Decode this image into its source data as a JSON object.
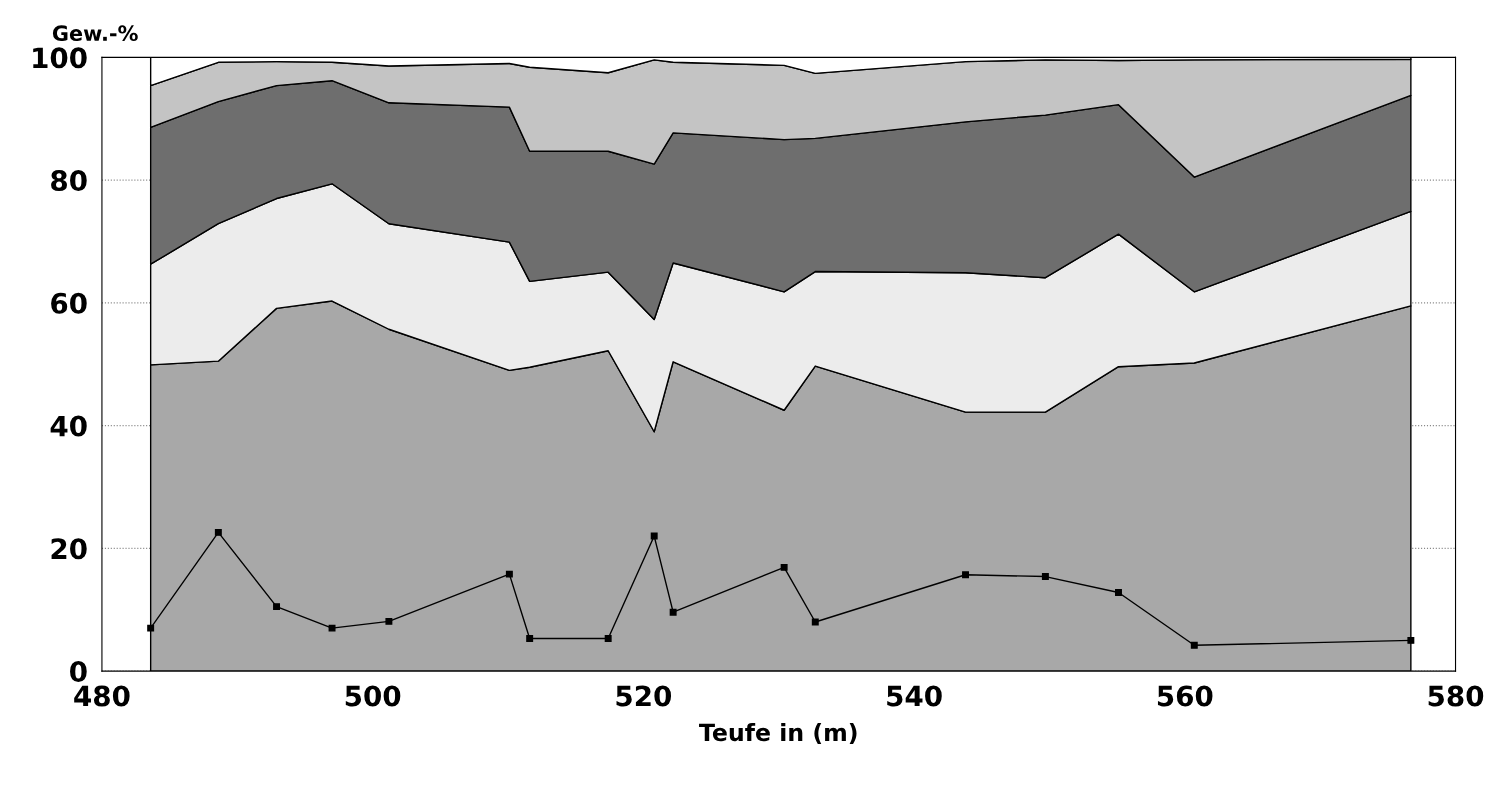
{
  "chart_data": {
    "type": "area",
    "stacked": true,
    "xlabel": "Teufe in (m)",
    "ylabel": "Gew.-%",
    "x": [
      483.6,
      488.6,
      492.9,
      497.0,
      501.2,
      510.1,
      511.6,
      517.4,
      520.8,
      522.2,
      530.4,
      532.7,
      543.8,
      549.7,
      555.1,
      560.7,
      576.7
    ],
    "xlim": [
      480,
      580
    ],
    "xticks": [
      480,
      500,
      520,
      540,
      560,
      580
    ],
    "ylim": [
      0,
      100
    ],
    "yticks": [
      0,
      20,
      40,
      60,
      80,
      100
    ],
    "grid": "y",
    "series": [
      {
        "color": "#a8a8a8",
        "values": [
          49.9,
          50.5,
          59.1,
          60.3,
          55.7,
          49.0,
          49.5,
          52.2,
          39.0,
          50.4,
          42.5,
          49.7,
          42.2,
          42.2,
          49.6,
          50.2,
          59.5
        ]
      },
      {
        "color": "#ececec",
        "values": [
          16.4,
          22.4,
          17.9,
          19.1,
          17.2,
          20.9,
          14.0,
          12.8,
          18.3,
          16.1,
          19.3,
          15.4,
          22.7,
          21.9,
          21.6,
          11.6,
          15.4
        ]
      },
      {
        "color": "#6e6e6e",
        "values": [
          22.3,
          19.9,
          18.4,
          16.8,
          19.7,
          22.0,
          21.2,
          19.7,
          25.3,
          21.2,
          24.8,
          21.7,
          24.6,
          26.5,
          21.1,
          18.7,
          18.9
        ]
      },
      {
        "color": "#c4c4c4",
        "values": [
          6.8,
          6.4,
          3.9,
          3.0,
          6.0,
          7.1,
          13.7,
          12.8,
          17.0,
          11.5,
          12.1,
          10.6,
          9.8,
          9.0,
          7.2,
          19.1,
          5.9
        ]
      },
      {
        "color": "#ffffff",
        "values": [
          4.6,
          0.8,
          0.7,
          0.8,
          1.4,
          1.0,
          1.6,
          2.5,
          0.4,
          0.8,
          1.3,
          2.6,
          0.7,
          0.4,
          0.5,
          0.4,
          0.3
        ]
      },
      {
        "type": "line",
        "color": "#000000",
        "marker": "square",
        "line_style": "solid",
        "values": [
          7.0,
          22.6,
          10.5,
          7.0,
          8.1,
          15.8,
          5.3,
          5.3,
          22.0,
          9.6,
          16.9,
          8.0,
          15.7,
          15.4,
          12.8,
          4.2,
          5.0
        ]
      }
    ]
  }
}
